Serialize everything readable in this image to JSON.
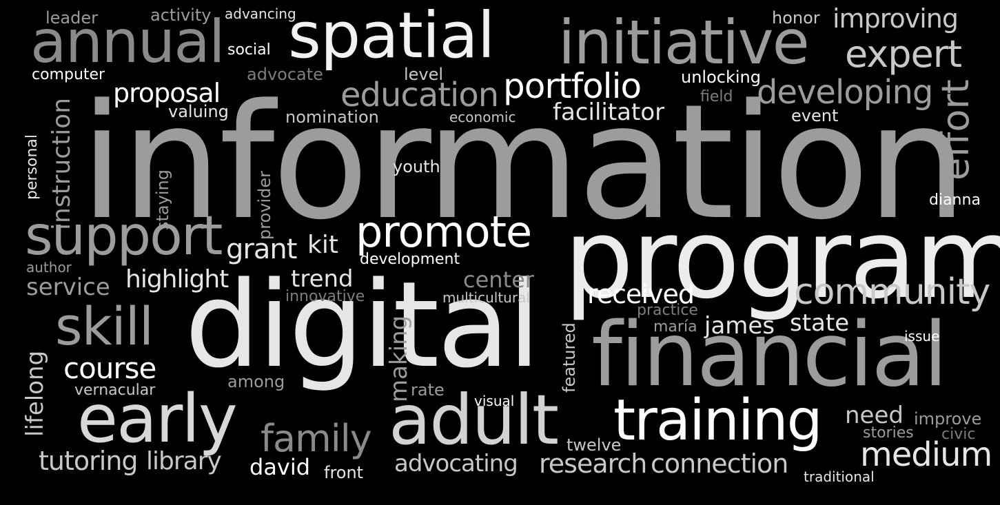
{
  "background": "#000000",
  "palette": {
    "white": "#ffffff",
    "light": "#dedede",
    "mid": "#bdbdbd",
    "gray": "#9c9c9c",
    "dark": "#7d7d7d"
  },
  "words": [
    {
      "id": "information",
      "text": "information",
      "color": "#9c9c9c",
      "orientation": "horizontal"
    },
    {
      "id": "program",
      "text": "program",
      "color": "#ececec",
      "orientation": "horizontal"
    },
    {
      "id": "digital",
      "text": "digital",
      "color": "#e6e6e6",
      "orientation": "horizontal"
    },
    {
      "id": "financial",
      "text": "financial",
      "color": "#9c9c9c",
      "orientation": "horizontal"
    },
    {
      "id": "spatial",
      "text": "spatial",
      "color": "#f2f2f2",
      "orientation": "horizontal"
    },
    {
      "id": "initiative",
      "text": "initiative",
      "color": "#9c9c9c",
      "orientation": "horizontal"
    },
    {
      "id": "annual",
      "text": "annual",
      "color": "#8a8a8a",
      "orientation": "horizontal"
    },
    {
      "id": "adult",
      "text": "adult",
      "color": "#d2d2d2",
      "orientation": "horizontal"
    },
    {
      "id": "early",
      "text": "early",
      "color": "#d8d8d8",
      "orientation": "horizontal"
    },
    {
      "id": "training",
      "text": "training",
      "color": "#ffffff",
      "orientation": "horizontal"
    },
    {
      "id": "support",
      "text": "support",
      "color": "#9c9c9c",
      "orientation": "horizontal"
    },
    {
      "id": "promote",
      "text": "promote",
      "color": "#ffffff",
      "orientation": "horizontal"
    },
    {
      "id": "community",
      "text": "community",
      "color": "#c8c8c8",
      "orientation": "horizontal"
    },
    {
      "id": "medium",
      "text": "medium",
      "color": "#e6e6e6",
      "orientation": "horizontal"
    },
    {
      "id": "expert",
      "text": "expert",
      "color": "#c8c8c8",
      "orientation": "horizontal"
    },
    {
      "id": "developing",
      "text": "developing",
      "color": "#9c9c9c",
      "orientation": "horizontal"
    },
    {
      "id": "portfolio",
      "text": "portfolio",
      "color": "#ffffff",
      "orientation": "horizontal"
    },
    {
      "id": "education",
      "text": "education",
      "color": "#9c9c9c",
      "orientation": "horizontal"
    },
    {
      "id": "skill",
      "text": "skill",
      "color": "#9c9c9c",
      "orientation": "horizontal"
    },
    {
      "id": "family",
      "text": "family",
      "color": "#8a8a8a",
      "orientation": "horizontal"
    },
    {
      "id": "effort",
      "text": "effort",
      "color": "#9c9c9c",
      "orientation": "vertical"
    },
    {
      "id": "improving",
      "text": "improving",
      "color": "#c8c8c8",
      "orientation": "horizontal"
    },
    {
      "id": "course",
      "text": "course",
      "color": "#ffffff",
      "orientation": "horizontal"
    },
    {
      "id": "research",
      "text": "research",
      "color": "#c8c8c8",
      "orientation": "horizontal"
    },
    {
      "id": "connection",
      "text": "connection",
      "color": "#c8c8c8",
      "orientation": "horizontal"
    },
    {
      "id": "proposal",
      "text": "proposal",
      "color": "#ffffff",
      "orientation": "horizontal"
    },
    {
      "id": "facilitator",
      "text": "facilitator",
      "color": "#e6e6e6",
      "orientation": "horizontal"
    },
    {
      "id": "received",
      "text": "received",
      "color": "#ffffff",
      "orientation": "horizontal"
    },
    {
      "id": "instruction",
      "text": "instruction",
      "color": "#9c9c9c",
      "orientation": "vertical"
    },
    {
      "id": "highlight",
      "text": "highlight",
      "color": "#e6e6e6",
      "orientation": "horizontal"
    },
    {
      "id": "grant",
      "text": "grant",
      "color": "#e6e6e6",
      "orientation": "horizontal"
    },
    {
      "id": "tutoring",
      "text": "tutoring",
      "color": "#c8c8c8",
      "orientation": "horizontal"
    },
    {
      "id": "library",
      "text": "library",
      "color": "#c8c8c8",
      "orientation": "horizontal"
    },
    {
      "id": "advocating",
      "text": "advocating",
      "color": "#c8c8c8",
      "orientation": "horizontal"
    },
    {
      "id": "service",
      "text": "service",
      "color": "#9c9c9c",
      "orientation": "horizontal"
    },
    {
      "id": "trend",
      "text": "trend",
      "color": "#e6e6e6",
      "orientation": "horizontal"
    },
    {
      "id": "center",
      "text": "center",
      "color": "#8a8a8a",
      "orientation": "horizontal"
    },
    {
      "id": "james",
      "text": "james",
      "color": "#e6e6e6",
      "orientation": "horizontal"
    },
    {
      "id": "state",
      "text": "state",
      "color": "#e6e6e6",
      "orientation": "horizontal"
    },
    {
      "id": "need",
      "text": "need",
      "color": "#c8c8c8",
      "orientation": "horizontal"
    },
    {
      "id": "david",
      "text": "david",
      "color": "#ffffff",
      "orientation": "horizontal"
    },
    {
      "id": "kit",
      "text": "kit",
      "color": "#e6e6e6",
      "orientation": "horizontal"
    },
    {
      "id": "making",
      "text": "making",
      "color": "#9c9c9c",
      "orientation": "vertical"
    },
    {
      "id": "lifelong",
      "text": "lifelong",
      "color": "#c8c8c8",
      "orientation": "vertical"
    },
    {
      "id": "leader",
      "text": "leader",
      "color": "#9c9c9c",
      "orientation": "horizontal"
    },
    {
      "id": "activity",
      "text": "activity",
      "color": "#9c9c9c",
      "orientation": "horizontal"
    },
    {
      "id": "advancing",
      "text": "advancing",
      "color": "#e6e6e6",
      "orientation": "horizontal"
    },
    {
      "id": "social",
      "text": "social",
      "color": "#ffffff",
      "orientation": "horizontal"
    },
    {
      "id": "computer",
      "text": "computer",
      "color": "#ffffff",
      "orientation": "horizontal"
    },
    {
      "id": "advocate",
      "text": "advocate",
      "color": "#7d7d7d",
      "orientation": "horizontal"
    },
    {
      "id": "level",
      "text": "level",
      "color": "#c8c8c8",
      "orientation": "horizontal"
    },
    {
      "id": "honor",
      "text": "honor",
      "color": "#c8c8c8",
      "orientation": "horizontal"
    },
    {
      "id": "unlocking",
      "text": "unlocking",
      "color": "#ffffff",
      "orientation": "horizontal"
    },
    {
      "id": "field",
      "text": "field",
      "color": "#7d7d7d",
      "orientation": "horizontal"
    },
    {
      "id": "event",
      "text": "event",
      "color": "#e6e6e6",
      "orientation": "horizontal"
    },
    {
      "id": "valuing",
      "text": "valuing",
      "color": "#e6e6e6",
      "orientation": "horizontal"
    },
    {
      "id": "nomination",
      "text": "nomination",
      "color": "#c8c8c8",
      "orientation": "horizontal"
    },
    {
      "id": "economic",
      "text": "economic",
      "color": "#c8c8c8",
      "orientation": "horizontal"
    },
    {
      "id": "youth",
      "text": "youth",
      "color": "#e6e6e6",
      "orientation": "horizontal"
    },
    {
      "id": "dianna",
      "text": "dianna",
      "color": "#ffffff",
      "orientation": "horizontal"
    },
    {
      "id": "personal",
      "text": "personal",
      "color": "#e6e6e6",
      "orientation": "vertical"
    },
    {
      "id": "staying",
      "text": "staying",
      "color": "#9c9c9c",
      "orientation": "vertical"
    },
    {
      "id": "provider",
      "text": "provider",
      "color": "#9c9c9c",
      "orientation": "vertical"
    },
    {
      "id": "development",
      "text": "development",
      "color": "#ffffff",
      "orientation": "horizontal"
    },
    {
      "id": "author",
      "text": "author",
      "color": "#9c9c9c",
      "orientation": "horizontal"
    },
    {
      "id": "innovative",
      "text": "innovative",
      "color": "#7d7d7d",
      "orientation": "horizontal"
    },
    {
      "id": "multicultural",
      "text": "multicultural",
      "color": "#c8c8c8",
      "orientation": "horizontal"
    },
    {
      "id": "practice",
      "text": "practice",
      "color": "#7d7d7d",
      "orientation": "horizontal"
    },
    {
      "id": "maria",
      "text": "maría",
      "color": "#9c9c9c",
      "orientation": "horizontal"
    },
    {
      "id": "issue",
      "text": "issue",
      "color": "#ffffff",
      "orientation": "horizontal"
    },
    {
      "id": "featured",
      "text": "featured",
      "color": "#c8c8c8",
      "orientation": "vertical"
    },
    {
      "id": "among",
      "text": "among",
      "color": "#9c9c9c",
      "orientation": "horizontal"
    },
    {
      "id": "vernacular",
      "text": "vernacular",
      "color": "#c8c8c8",
      "orientation": "horizontal"
    },
    {
      "id": "rate",
      "text": "rate",
      "color": "#9c9c9c",
      "orientation": "horizontal"
    },
    {
      "id": "visual",
      "text": "visual",
      "color": "#ffffff",
      "orientation": "horizontal"
    },
    {
      "id": "twelve",
      "text": "twelve",
      "color": "#c8c8c8",
      "orientation": "horizontal"
    },
    {
      "id": "improve",
      "text": "improve",
      "color": "#9c9c9c",
      "orientation": "horizontal"
    },
    {
      "id": "stories",
      "text": "stories",
      "color": "#9c9c9c",
      "orientation": "horizontal"
    },
    {
      "id": "civic",
      "text": "civic",
      "color": "#7d7d7d",
      "orientation": "horizontal"
    },
    {
      "id": "front",
      "text": "front",
      "color": "#e6e6e6",
      "orientation": "horizontal"
    },
    {
      "id": "traditional",
      "text": "traditional",
      "color": "#e6e6e6",
      "orientation": "horizontal"
    }
  ]
}
